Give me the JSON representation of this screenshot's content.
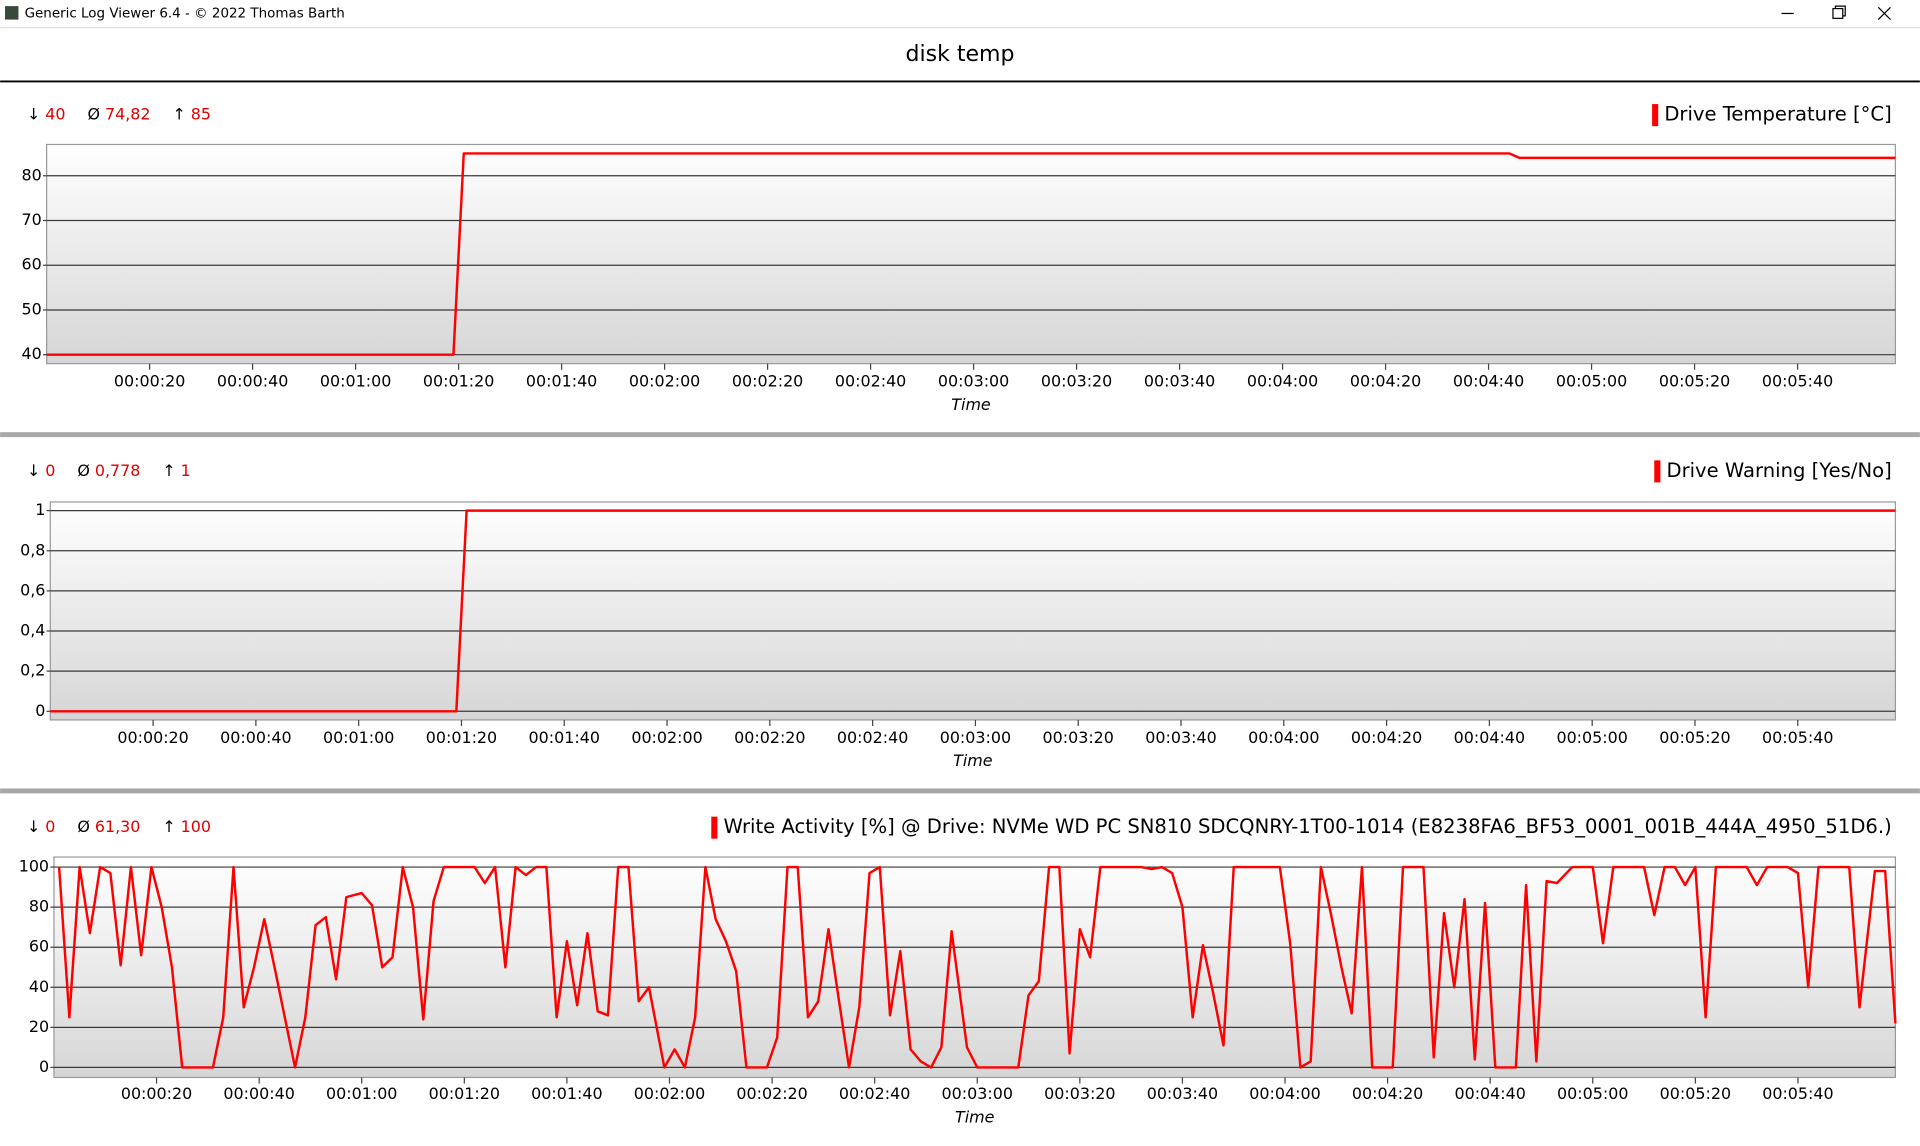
{
  "window": {
    "title": "Generic Log Viewer 6.4 - © 2022 Thomas Barth"
  },
  "header": {
    "title": "disk temp"
  },
  "chart_data": [
    {
      "type": "line",
      "x_label": "Time",
      "stats": [
        {
          "symbol": "↓",
          "value": "40"
        },
        {
          "symbol": "Ø",
          "value": "74,82"
        },
        {
          "symbol": "↑",
          "value": "85"
        }
      ],
      "x": [
        0,
        79,
        81,
        284,
        286,
        359
      ],
      "series": [
        {
          "name": "Drive Temperature [°C]",
          "color": "#ff0000",
          "values": [
            40,
            40,
            85,
            85,
            84,
            84
          ]
        }
      ],
      "xlim": [
        0,
        359
      ],
      "xticks": [
        {
          "value": 20,
          "label": "00:00:20"
        },
        {
          "value": 40,
          "label": "00:00:40"
        },
        {
          "value": 60,
          "label": "00:01:00"
        },
        {
          "value": 80,
          "label": "00:01:20"
        },
        {
          "value": 100,
          "label": "00:01:40"
        },
        {
          "value": 120,
          "label": "00:02:00"
        },
        {
          "value": 140,
          "label": "00:02:20"
        },
        {
          "value": 160,
          "label": "00:02:40"
        },
        {
          "value": 180,
          "label": "00:03:00"
        },
        {
          "value": 200,
          "label": "00:03:20"
        },
        {
          "value": 220,
          "label": "00:03:40"
        },
        {
          "value": 240,
          "label": "00:04:00"
        },
        {
          "value": 260,
          "label": "00:04:20"
        },
        {
          "value": 280,
          "label": "00:04:40"
        },
        {
          "value": 300,
          "label": "00:05:00"
        },
        {
          "value": 320,
          "label": "00:05:20"
        },
        {
          "value": 340,
          "label": "00:05:40"
        }
      ],
      "ylim": [
        38,
        87
      ],
      "yticks": [
        40,
        50,
        60,
        70,
        80
      ],
      "grid": true
    },
    {
      "type": "line",
      "x_label": "Time",
      "stats": [
        {
          "symbol": "↓",
          "value": "0"
        },
        {
          "symbol": "Ø",
          "value": "0,778"
        },
        {
          "symbol": "↑",
          "value": "1"
        }
      ],
      "x": [
        0,
        79,
        81,
        359
      ],
      "series": [
        {
          "name": "Drive Warning [Yes/No]",
          "color": "#ff0000",
          "values": [
            0,
            0,
            1,
            1
          ]
        }
      ],
      "xlim": [
        0,
        359
      ],
      "xticks": [
        {
          "value": 20,
          "label": "00:00:20"
        },
        {
          "value": 40,
          "label": "00:00:40"
        },
        {
          "value": 60,
          "label": "00:01:00"
        },
        {
          "value": 80,
          "label": "00:01:20"
        },
        {
          "value": 100,
          "label": "00:01:40"
        },
        {
          "value": 120,
          "label": "00:02:00"
        },
        {
          "value": 140,
          "label": "00:02:20"
        },
        {
          "value": 160,
          "label": "00:02:40"
        },
        {
          "value": 180,
          "label": "00:03:00"
        },
        {
          "value": 200,
          "label": "00:03:20"
        },
        {
          "value": 220,
          "label": "00:03:40"
        },
        {
          "value": 240,
          "label": "00:04:00"
        },
        {
          "value": 260,
          "label": "00:04:20"
        },
        {
          "value": 280,
          "label": "00:04:40"
        },
        {
          "value": 300,
          "label": "00:05:00"
        },
        {
          "value": 320,
          "label": "00:05:20"
        },
        {
          "value": 340,
          "label": "00:05:40"
        }
      ],
      "ylim": [
        -0.043,
        1.043
      ],
      "yticks": [
        0,
        {
          "value": 0.2,
          "label": "0,2"
        },
        {
          "value": 0.4,
          "label": "0,4"
        },
        {
          "value": 0.6,
          "label": "0,6"
        },
        {
          "value": 0.8,
          "label": "0,8"
        },
        1
      ],
      "grid": true
    },
    {
      "type": "line",
      "x_label": "Time",
      "stats": [
        {
          "symbol": "↓",
          "value": "0"
        },
        {
          "symbol": "Ø",
          "value": "61,30"
        },
        {
          "symbol": "↑",
          "value": "100"
        }
      ],
      "x": [
        1,
        3,
        5,
        7,
        9,
        11,
        13,
        15,
        17,
        19,
        21,
        23,
        25,
        27,
        29,
        31,
        33,
        35,
        37,
        39,
        41,
        43,
        45,
        47,
        49,
        51,
        53,
        55,
        57,
        60,
        62,
        64,
        66,
        68,
        70,
        72,
        74,
        76,
        78,
        80,
        82,
        84,
        86,
        88,
        90,
        92,
        94,
        96,
        98,
        100,
        102,
        104,
        106,
        108,
        110,
        112,
        114,
        116,
        119,
        121,
        123,
        125,
        127,
        129,
        131,
        133,
        135,
        137,
        139,
        141,
        143,
        145,
        147,
        149,
        151,
        153,
        155,
        157,
        159,
        161,
        163,
        165,
        167,
        169,
        171,
        173,
        175,
        178,
        180,
        182,
        184,
        186,
        188,
        190,
        192,
        194,
        196,
        198,
        200,
        202,
        204,
        206,
        208,
        210,
        212,
        214,
        216,
        218,
        220,
        222,
        224,
        226,
        228,
        230,
        232,
        234,
        237,
        239,
        241,
        243,
        245,
        247,
        249,
        251,
        253,
        255,
        257,
        259,
        261,
        263,
        265,
        267,
        269,
        271,
        273,
        275,
        277,
        279,
        281,
        283,
        285,
        287,
        289,
        291,
        293,
        296,
        298,
        300,
        302,
        304,
        306,
        308,
        310,
        312,
        314,
        316,
        318,
        320,
        322,
        324,
        326,
        328,
        330,
        332,
        334,
        336,
        338,
        340,
        342,
        344,
        346,
        348,
        350,
        352,
        355,
        357,
        359
      ],
      "series": [
        {
          "name": "Write Activity [%] @ Drive: NVMe WD PC SN810 SDCQNRY-1T00-1014 (E8238FA6_BF53_0001_001B_444A_4950_51D6.)",
          "color": "#ff0000",
          "values": [
            100,
            25,
            100,
            67,
            100,
            97,
            51,
            100,
            56,
            100,
            80,
            50,
            0,
            0,
            0,
            0,
            25,
            100,
            30,
            50,
            74,
            50,
            25,
            0,
            25,
            71,
            75,
            44,
            85,
            87,
            81,
            50,
            55,
            100,
            80,
            24,
            83,
            100,
            100,
            100,
            100,
            92,
            100,
            50,
            100,
            96,
            100,
            100,
            25,
            63,
            31,
            67,
            28,
            26,
            100,
            100,
            33,
            40,
            0,
            9,
            0,
            25,
            100,
            74,
            63,
            48,
            0,
            0,
            0,
            15,
            100,
            100,
            25,
            33,
            69,
            34,
            0,
            30,
            97,
            100,
            26,
            58,
            9,
            3,
            0,
            10,
            68,
            10,
            0,
            0,
            0,
            0,
            0,
            36,
            43,
            100,
            100,
            7,
            69,
            55,
            100,
            100,
            100,
            100,
            100,
            99,
            100,
            97,
            80,
            25,
            61,
            37,
            11,
            100,
            100,
            100,
            100,
            100,
            62,
            0,
            3,
            100,
            76,
            50,
            27,
            100,
            0,
            0,
            0,
            100,
            100,
            100,
            5,
            77,
            40,
            84,
            4,
            82,
            0,
            0,
            0,
            91,
            3,
            93,
            92,
            100,
            100,
            100,
            62,
            100,
            100,
            100,
            100,
            76,
            100,
            100,
            91,
            100,
            25,
            100,
            100,
            100,
            100,
            91,
            100,
            100,
            100,
            97,
            40,
            100,
            100,
            100,
            100,
            30,
            98,
            98,
            22
          ]
        }
      ],
      "xlim": [
        0,
        359
      ],
      "xticks": [
        {
          "value": 20,
          "label": "00:00:20"
        },
        {
          "value": 40,
          "label": "00:00:40"
        },
        {
          "value": 60,
          "label": "00:01:00"
        },
        {
          "value": 80,
          "label": "00:01:20"
        },
        {
          "value": 100,
          "label": "00:01:40"
        },
        {
          "value": 120,
          "label": "00:02:00"
        },
        {
          "value": 140,
          "label": "00:02:20"
        },
        {
          "value": 160,
          "label": "00:02:40"
        },
        {
          "value": 180,
          "label": "00:03:00"
        },
        {
          "value": 200,
          "label": "00:03:20"
        },
        {
          "value": 220,
          "label": "00:03:40"
        },
        {
          "value": 240,
          "label": "00:04:00"
        },
        {
          "value": 260,
          "label": "00:04:20"
        },
        {
          "value": 280,
          "label": "00:04:40"
        },
        {
          "value": 300,
          "label": "00:05:00"
        },
        {
          "value": 320,
          "label": "00:05:20"
        },
        {
          "value": 340,
          "label": "00:05:40"
        }
      ],
      "ylim": [
        -5,
        105
      ],
      "yticks": [
        0,
        20,
        40,
        60,
        80,
        100
      ],
      "grid": true
    }
  ]
}
